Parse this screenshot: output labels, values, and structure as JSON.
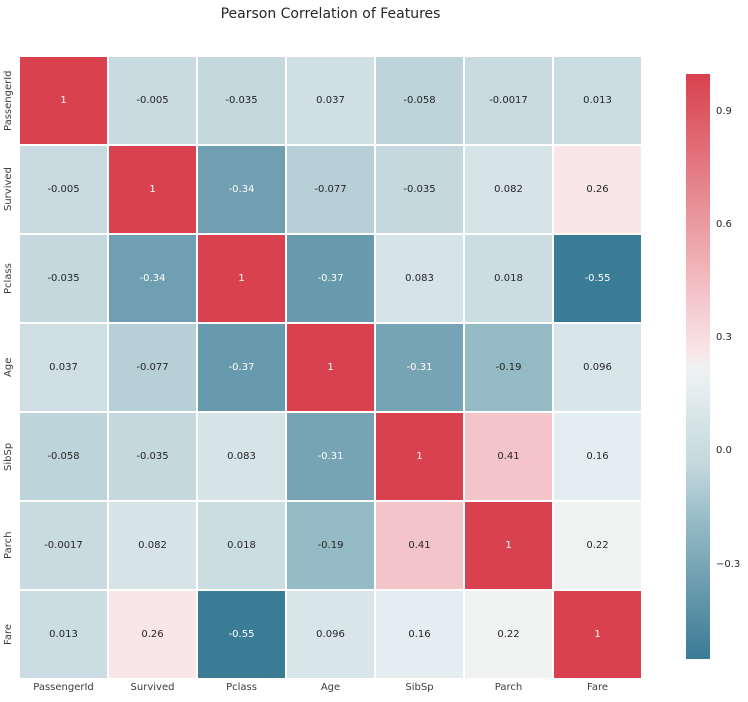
{
  "chart_data": {
    "type": "heatmap",
    "title": "Pearson Correlation of Features",
    "categories": [
      "PassengerId",
      "Survived",
      "Pclass",
      "Age",
      "SibSp",
      "Parch",
      "Fare"
    ],
    "matrix": [
      [
        1,
        -0.005,
        -0.035,
        0.037,
        -0.058,
        -0.0017,
        0.013
      ],
      [
        -0.005,
        1,
        -0.34,
        -0.077,
        -0.035,
        0.082,
        0.26
      ],
      [
        -0.035,
        -0.34,
        1,
        -0.37,
        0.083,
        0.018,
        -0.55
      ],
      [
        0.037,
        -0.077,
        -0.37,
        1,
        -0.31,
        -0.19,
        0.096
      ],
      [
        -0.058,
        -0.035,
        0.083,
        -0.31,
        1,
        0.41,
        0.16
      ],
      [
        -0.0017,
        0.082,
        0.018,
        -0.19,
        0.41,
        1,
        0.22
      ],
      [
        0.013,
        0.26,
        -0.55,
        0.096,
        0.16,
        0.22,
        1
      ]
    ],
    "cell_labels": [
      [
        "1",
        "-0.005",
        "-0.035",
        "0.037",
        "-0.058",
        "-0.0017",
        "0.013"
      ],
      [
        "-0.005",
        "1",
        "-0.34",
        "-0.077",
        "-0.035",
        "0.082",
        "0.26"
      ],
      [
        "-0.035",
        "-0.34",
        "1",
        "-0.37",
        "0.083",
        "0.018",
        "-0.55"
      ],
      [
        "0.037",
        "-0.077",
        "-0.37",
        "1",
        "-0.31",
        "-0.19",
        "0.096"
      ],
      [
        "-0.058",
        "-0.035",
        "0.083",
        "-0.31",
        "1",
        "0.41",
        "0.16"
      ],
      [
        "-0.0017",
        "0.082",
        "0.018",
        "-0.19",
        "0.41",
        "1",
        "0.22"
      ],
      [
        "0.013",
        "0.26",
        "-0.55",
        "0.096",
        "0.16",
        "0.22",
        "1"
      ]
    ],
    "vmin": -0.55,
    "vmax": 1.0,
    "legend_position": "right",
    "grid": false,
    "colorbar_ticks": [
      {
        "label": "0.9",
        "value": 0.9
      },
      {
        "label": "0.6",
        "value": 0.6
      },
      {
        "label": "0.3",
        "value": 0.3
      },
      {
        "label": "0.0",
        "value": 0.0
      },
      {
        "label": "−0.3",
        "value": -0.3
      }
    ],
    "colormap_anchors": [
      [
        0.0,
        "#3a7b96"
      ],
      [
        0.1355,
        "#6f9fb0"
      ],
      [
        0.2323,
        "#94bac5"
      ],
      [
        0.3323,
        "#c4d8de"
      ],
      [
        0.4168,
        "#d8e5e9"
      ],
      [
        0.4581,
        "#e4eef0"
      ],
      [
        0.4968,
        "#f0f2f2"
      ],
      [
        0.5226,
        "#f8e6e8"
      ],
      [
        0.6194,
        "#f3c5c9"
      ],
      [
        1.0,
        "#d8414d"
      ]
    ],
    "annotation_text_colors": {
      "dark": "#262626",
      "light": "#ffffff"
    }
  }
}
